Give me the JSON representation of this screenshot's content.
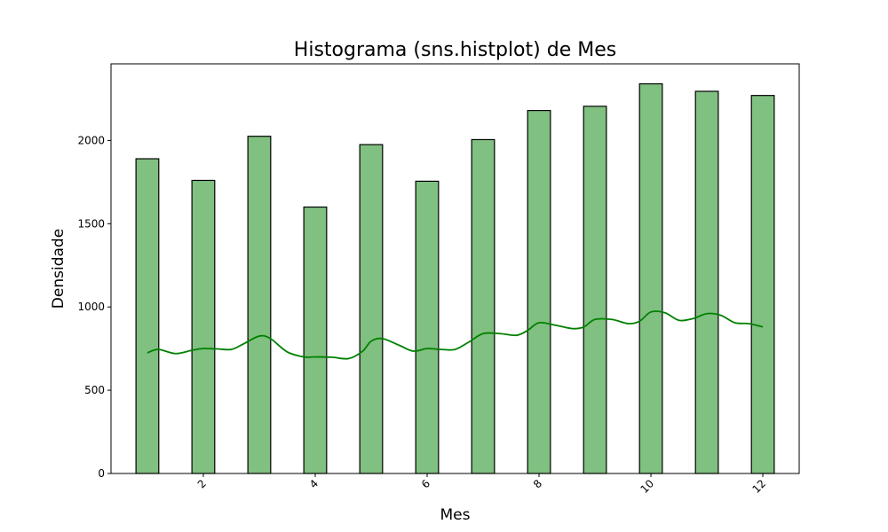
{
  "chart_data": {
    "type": "bar",
    "title": "Histograma (sns.histplot) de Mes",
    "xlabel": "Mes",
    "ylabel": "Densidade",
    "xlim": [
      0.35,
      12.65
    ],
    "ylim": [
      0,
      2460
    ],
    "xticks": [
      2,
      4,
      6,
      8,
      10,
      12
    ],
    "yticks": [
      0,
      500,
      1000,
      1500,
      2000
    ],
    "xtick_rotation": 45,
    "grid": false,
    "bar_color": "#80c080",
    "bar_edge_color": "#000000",
    "kde_color": "#008000",
    "bin_width": 0.4074,
    "bars": [
      {
        "x": 1,
        "value": 1890
      },
      {
        "x": 2,
        "value": 1760
      },
      {
        "x": 3,
        "value": 2025
      },
      {
        "x": 4,
        "value": 1600
      },
      {
        "x": 5,
        "value": 1975
      },
      {
        "x": 6,
        "value": 1755
      },
      {
        "x": 7,
        "value": 2005
      },
      {
        "x": 8,
        "value": 2180
      },
      {
        "x": 9,
        "value": 2205
      },
      {
        "x": 10,
        "value": 2340
      },
      {
        "x": 11,
        "value": 2295
      },
      {
        "x": 12,
        "value": 2270
      }
    ],
    "kde": {
      "x": [
        1.0,
        1.2,
        1.5,
        1.8,
        2.0,
        2.25,
        2.5,
        2.7,
        3.0,
        3.2,
        3.5,
        3.8,
        4.0,
        4.3,
        4.6,
        4.85,
        5.0,
        5.2,
        5.5,
        5.75,
        6.0,
        6.25,
        6.5,
        6.75,
        7.0,
        7.3,
        7.6,
        7.8,
        8.0,
        8.3,
        8.6,
        8.8,
        9.0,
        9.3,
        9.6,
        9.8,
        10.0,
        10.25,
        10.5,
        10.75,
        11.0,
        11.25,
        11.5,
        11.75,
        12.0
      ],
      "y": [
        725,
        745,
        720,
        740,
        750,
        748,
        745,
        775,
        825,
        810,
        730,
        700,
        700,
        698,
        690,
        735,
        795,
        810,
        770,
        735,
        750,
        745,
        745,
        790,
        840,
        840,
        830,
        860,
        905,
        890,
        870,
        880,
        925,
        925,
        900,
        915,
        970,
        965,
        920,
        930,
        960,
        950,
        905,
        900,
        880
      ]
    }
  }
}
